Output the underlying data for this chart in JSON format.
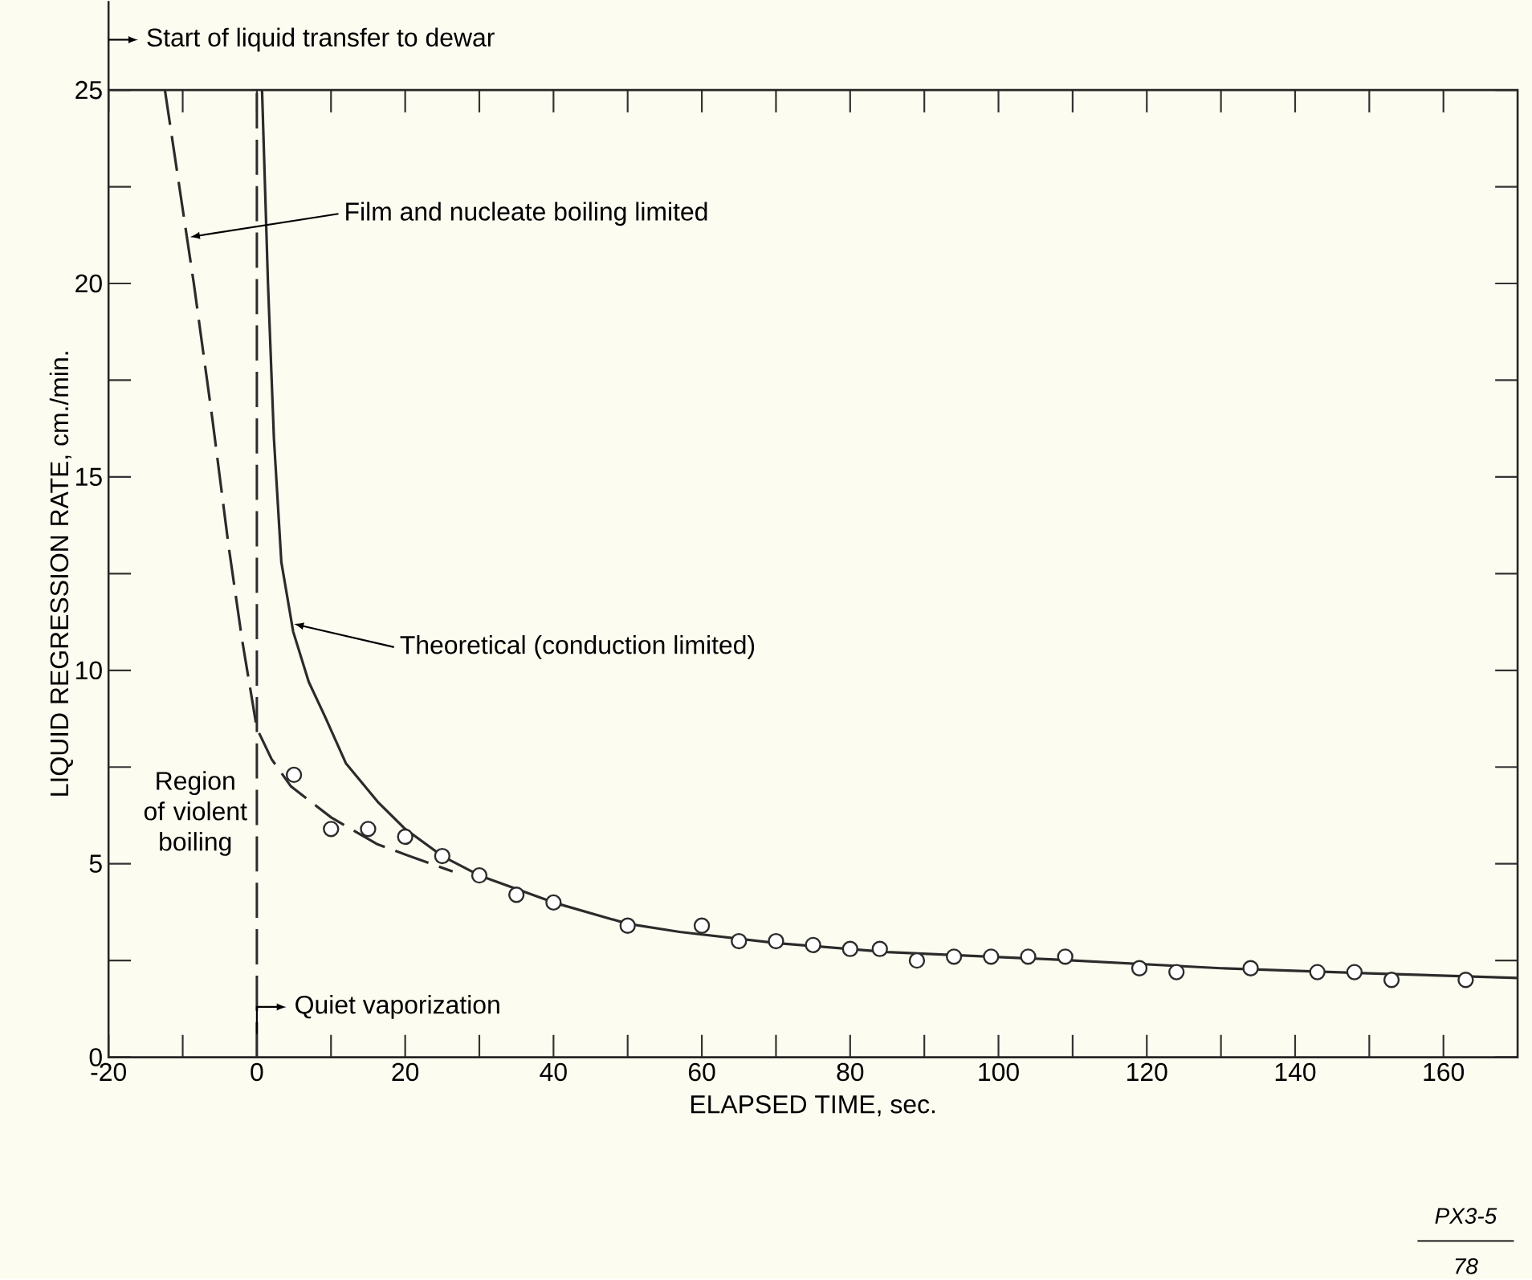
{
  "chart_data": {
    "type": "line",
    "xlabel": "ELAPSED TIME, sec.",
    "ylabel": "LIQUID REGRESSION RATE, cm./min.",
    "xlim": [
      -20,
      170
    ],
    "ylim": [
      0,
      25
    ],
    "xticks": [
      -20,
      0,
      20,
      40,
      60,
      80,
      100,
      120,
      140,
      160
    ],
    "yticks": [
      0,
      5,
      10,
      15,
      20,
      25
    ],
    "grid": false,
    "series": [
      {
        "type": "scatter",
        "marker": "circle",
        "color": "#2b2b2b",
        "x": [
          5,
          10,
          15,
          20,
          25,
          30,
          35,
          40,
          50,
          60,
          65,
          70,
          75,
          80,
          84,
          89,
          94,
          99,
          104,
          109,
          119,
          124,
          134,
          143,
          148,
          153,
          163
        ],
        "values": [
          7.3,
          5.9,
          5.9,
          5.7,
          5.2,
          4.7,
          4.2,
          4.0,
          3.4,
          3.4,
          3.0,
          3.0,
          2.9,
          2.8,
          2.8,
          2.5,
          2.6,
          2.6,
          2.6,
          2.6,
          2.3,
          2.2,
          2.3,
          2.2,
          2.2,
          2.0,
          2.0
        ]
      },
      {
        "marker": "none",
        "line_style": "solid",
        "color": "#2b2b2b",
        "x": [
          0.7,
          1.5,
          2.3,
          3.3,
          4.9,
          7,
          9.2,
          12,
          16.3,
          20,
          25,
          30,
          40,
          50,
          57,
          70,
          85,
          107,
          130,
          150,
          170
        ],
        "values": [
          25,
          20,
          16,
          12.8,
          11,
          9.7,
          8.8,
          7.6,
          6.6,
          5.9,
          5.2,
          4.7,
          4.0,
          3.45,
          3.24,
          2.95,
          2.72,
          2.53,
          2.3,
          2.17,
          2.05
        ]
      },
      {
        "marker": "none",
        "line_style": "dashed",
        "color": "#2b2b2b",
        "x": [
          -12.4,
          -8.5,
          -6,
          -3.8,
          -2,
          0,
          2,
          4.6,
          10,
          16.3,
          22,
          26.4
        ],
        "values": [
          25,
          20,
          16.5,
          13.2,
          10.8,
          8.5,
          7.7,
          7.0,
          6.2,
          5.5,
          5.1,
          4.8
        ]
      }
    ],
    "ref_lines": [
      {
        "axis": "x",
        "value": 0,
        "line_style": "dashed",
        "color": "#2b2b2b"
      }
    ],
    "annotations": [
      "Start of liquid transfer to dewar",
      {
        "text": "Film and nucleate boiling limited",
        "x": -9,
        "y": 21.2
      },
      {
        "text": "Theoretical (conduction limited)",
        "x": 5,
        "y": 11.2
      },
      "Region of violent boiling",
      {
        "text": "Quiet vaporization",
        "x": 0,
        "y": 1.3
      },
      "PX3-5",
      "78"
    ]
  }
}
